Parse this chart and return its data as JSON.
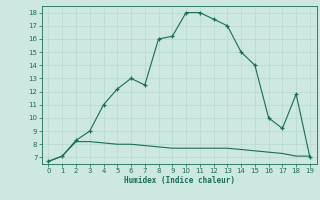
{
  "xlabel": "Humidex (Indice chaleur)",
  "x": [
    0,
    1,
    2,
    3,
    4,
    5,
    6,
    7,
    8,
    9,
    10,
    11,
    12,
    13,
    14,
    15,
    16,
    17,
    18,
    19
  ],
  "line1": [
    6.7,
    7.1,
    8.3,
    9.0,
    11.0,
    12.2,
    13.0,
    12.5,
    16.0,
    16.2,
    18.0,
    18.0,
    17.5,
    17.0,
    15.0,
    14.0,
    10.0,
    9.2,
    11.8,
    7.0
  ],
  "line2": [
    6.7,
    7.1,
    8.2,
    8.2,
    8.1,
    8.0,
    8.0,
    7.9,
    7.8,
    7.7,
    7.7,
    7.7,
    7.7,
    7.7,
    7.6,
    7.5,
    7.4,
    7.3,
    7.1,
    7.1
  ],
  "line_color": "#1a6b5a",
  "bg_color": "#cce8e0",
  "grid_color_major": "#b8d8d0",
  "grid_color_minor": "#d4eae4",
  "ylim": [
    6.5,
    18.5
  ],
  "xlim": [
    -0.5,
    19.5
  ],
  "yticks": [
    7,
    8,
    9,
    10,
    11,
    12,
    13,
    14,
    15,
    16,
    17,
    18
  ],
  "xticks": [
    0,
    1,
    2,
    3,
    4,
    5,
    6,
    7,
    8,
    9,
    10,
    11,
    12,
    13,
    14,
    15,
    16,
    17,
    18,
    19
  ]
}
